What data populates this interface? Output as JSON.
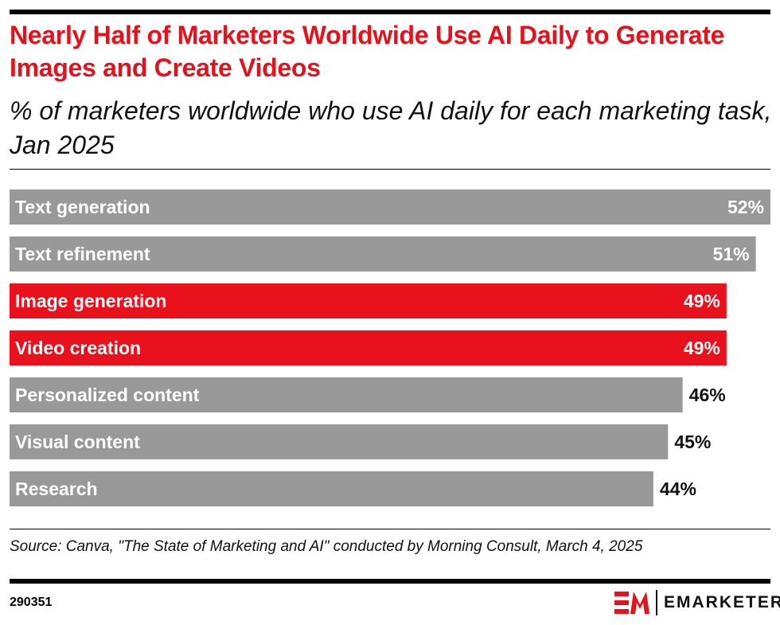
{
  "header": {
    "title": "Nearly Half of Marketers Worldwide Use AI Daily to Generate Images and Create Videos",
    "subtitle": "% of marketers worldwide who use AI daily for each marketing task, Jan 2025"
  },
  "chart_data": {
    "type": "bar",
    "orientation": "horizontal",
    "title": "Nearly Half of Marketers Worldwide Use AI Daily to Generate Images and Create Videos",
    "subtitle": "% of marketers worldwide who use AI daily for each marketing task, Jan 2025",
    "categories": [
      "Text generation",
      "Text refinement",
      "Image generation",
      "Video creation",
      "Personalized content",
      "Visual content",
      "Research"
    ],
    "values": [
      52,
      51,
      49,
      49,
      46,
      45,
      44
    ],
    "value_labels": [
      "52%",
      "51%",
      "49%",
      "49%",
      "46%",
      "45%",
      "44%"
    ],
    "highlighted": [
      false,
      false,
      true,
      true,
      false,
      false,
      false
    ],
    "xlim": [
      0,
      52
    ],
    "grid": false,
    "colors": {
      "default": "#999999",
      "highlight": "#e8111c"
    }
  },
  "footer": {
    "source": "Source: Canva, \"The State of Marketing and AI\" conducted by Morning Consult, March 4, 2025",
    "chart_id": "290351",
    "logo_text": "EMARKETER",
    "logo_mark": "EM"
  }
}
